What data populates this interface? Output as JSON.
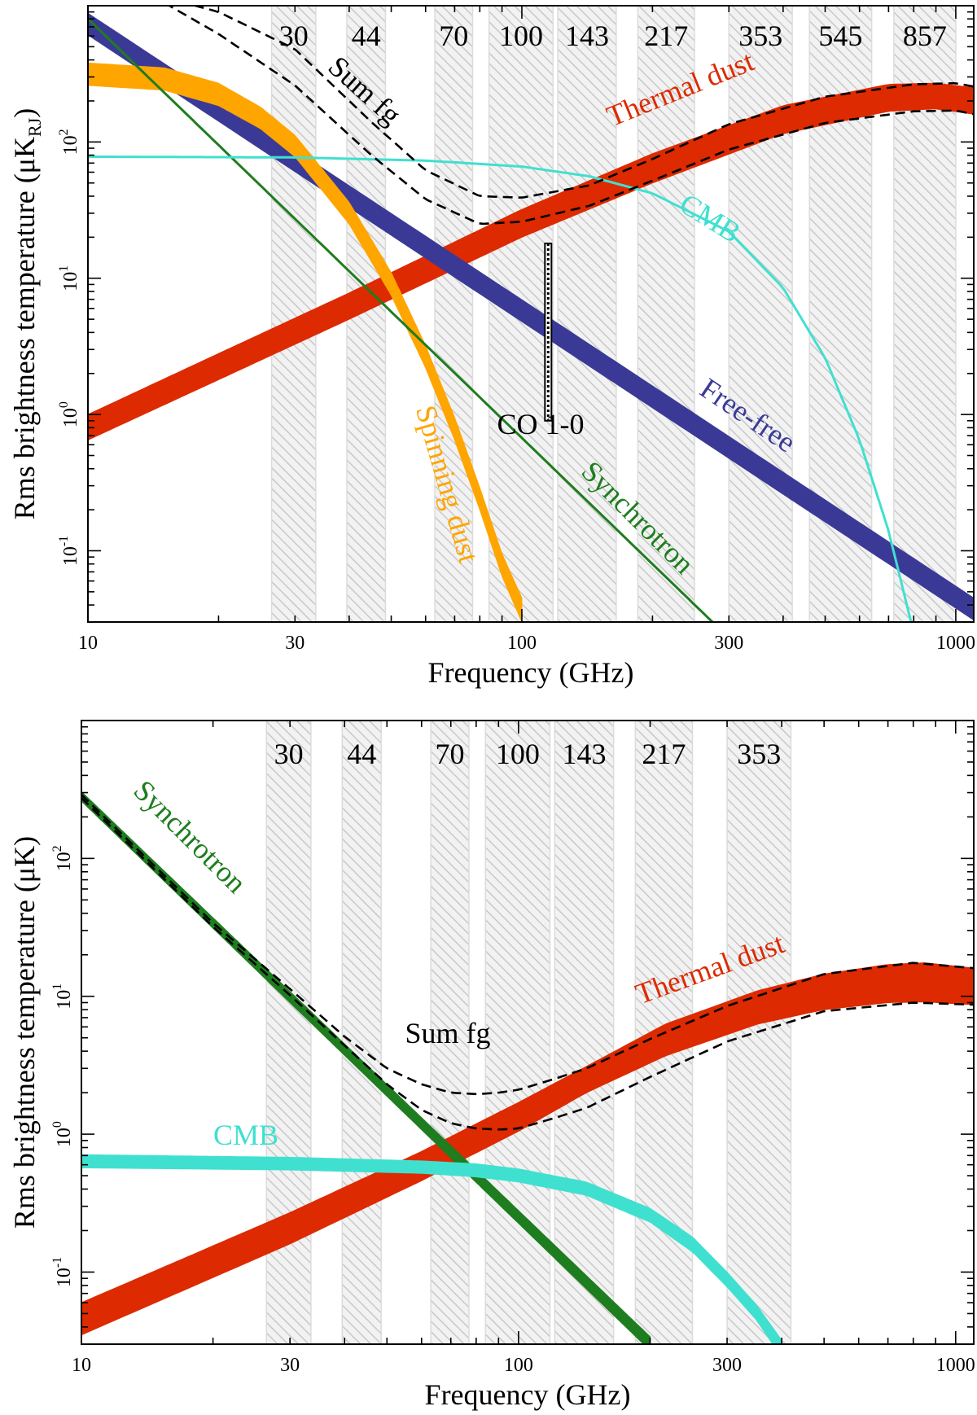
{
  "chart_data": [
    {
      "type": "line",
      "panel": "top",
      "xlabel": "Frequency (GHz)",
      "ylabel": "Rms brightness temperature (μK",
      "ylabel_sub": "RJ",
      "ylabel_close": ")",
      "xscale": "log",
      "yscale": "log",
      "xlim": [
        10,
        1100
      ],
      "ylim": [
        0.03,
        1000
      ],
      "x_ticks": [
        10,
        30,
        100,
        300,
        1000
      ],
      "x_tick_labels": [
        "10",
        "30",
        "100",
        "300",
        "1000"
      ],
      "y_ticks": [
        0.1,
        1,
        10,
        100
      ],
      "y_tick_labels": [
        [
          "10",
          "-1"
        ],
        [
          "10",
          "0"
        ],
        [
          "10",
          "1"
        ],
        [
          "10",
          "2"
        ]
      ],
      "bands": [
        {
          "label": "30",
          "range": [
            26.5,
            33.5
          ]
        },
        {
          "label": "44",
          "range": [
            39.5,
            48.5
          ]
        },
        {
          "label": "70",
          "range": [
            63,
            77
          ]
        },
        {
          "label": "100",
          "range": [
            84,
            118
          ]
        },
        {
          "label": "143",
          "range": [
            121,
            165
          ]
        },
        {
          "label": "217",
          "range": [
            185,
            250
          ]
        },
        {
          "label": "353",
          "range": [
            300,
            420
          ]
        },
        {
          "label": "545",
          "range": [
            460,
            640
          ]
        },
        {
          "label": "857",
          "range": [
            720,
            1000
          ]
        }
      ],
      "series": [
        {
          "name": "Thermal dust",
          "kind": "band",
          "color": "#dd2a00",
          "x": [
            10,
            20,
            40,
            100,
            200,
            400,
            700,
            900,
            1100
          ],
          "y_low": [
            0.65,
            1.8,
            5.0,
            20,
            50,
            115,
            168,
            175,
            160
          ],
          "y_high": [
            1.0,
            2.8,
            7.8,
            32,
            82,
            185,
            265,
            270,
            250
          ]
        },
        {
          "name": "Sum fg",
          "kind": "dashed-pair",
          "color": "#000000",
          "x": [
            15,
            20,
            30,
            45,
            60,
            80,
            100,
            143,
            200,
            300,
            500,
            800,
            1000,
            1100
          ],
          "y_low": [
            1050,
            620,
            260,
            80,
            38,
            25,
            26,
            34,
            52,
            88,
            138,
            168,
            170,
            160
          ],
          "y_high": [
            1150,
            900,
            480,
            140,
            62,
            40,
            39,
            48,
            75,
            135,
            215,
            265,
            270,
            255
          ]
        },
        {
          "name": "Free-free",
          "kind": "band",
          "color": "#3a3a96",
          "x": [
            10,
            1100
          ],
          "y_low": [
            610,
            0.031
          ],
          "y_high": [
            880,
            0.045
          ]
        },
        {
          "name": "Spinning dust",
          "kind": "band",
          "color": "#ffa500",
          "x": [
            10,
            15,
            20,
            25,
            30,
            40,
            50,
            60,
            70,
            80,
            90,
            100
          ],
          "y_low": [
            260,
            240,
            185,
            125,
            78,
            25,
            7.5,
            2.2,
            0.65,
            0.2,
            0.065,
            0.03
          ],
          "y_high": [
            380,
            350,
            270,
            180,
            112,
            36,
            11,
            3.2,
            0.95,
            0.29,
            0.095,
            0.045
          ]
        },
        {
          "name": "Synchrotron",
          "kind": "line",
          "color": "#1e7d1e",
          "x": [
            10,
            275
          ],
          "y": [
            800,
            0.03
          ]
        },
        {
          "name": "CMB",
          "kind": "line",
          "color": "#40e0d0",
          "x": [
            10,
            30,
            60,
            100,
            143,
            200,
            300,
            400,
            500,
            600,
            700,
            800
          ],
          "y": [
            78,
            77,
            73,
            66,
            56,
            42,
            22,
            8.5,
            2.6,
            0.65,
            0.14,
            0.025
          ]
        },
        {
          "name": "CO 1-0",
          "kind": "vbar",
          "color": "#000000",
          "x": 115,
          "y_range": [
            0.9,
            18
          ]
        }
      ],
      "labels": [
        {
          "text": "Sum fg",
          "color": "#000000"
        },
        {
          "text": "Thermal dust",
          "color": "#dd2a00"
        },
        {
          "text": "CMB",
          "color": "#40e0d0"
        },
        {
          "text": "Free-free",
          "color": "#3a3a96"
        },
        {
          "text": "Spinning dust",
          "color": "#ffa500"
        },
        {
          "text": "Synchrotron",
          "color": "#1e7d1e"
        },
        {
          "text": "CO 1-0",
          "color": "#000000"
        }
      ]
    },
    {
      "type": "line",
      "panel": "bottom",
      "xlabel": "Frequency (GHz)",
      "ylabel": "Rms brightness temperature (μK)",
      "ylabel_sub": "",
      "ylabel_close": "",
      "xscale": "log",
      "yscale": "log",
      "xlim": [
        10,
        1100
      ],
      "ylim": [
        0.03,
        1000
      ],
      "x_ticks": [
        10,
        30,
        100,
        300,
        1000
      ],
      "x_tick_labels": [
        "10",
        "30",
        "100",
        "300",
        "1000"
      ],
      "y_ticks": [
        0.1,
        1,
        10,
        100
      ],
      "y_tick_labels": [
        [
          "10",
          "-1"
        ],
        [
          "10",
          "0"
        ],
        [
          "10",
          "1"
        ],
        [
          "10",
          "2"
        ]
      ],
      "bands": [
        {
          "label": "30",
          "range": [
            26.5,
            33.5
          ]
        },
        {
          "label": "44",
          "range": [
            39.5,
            48.5
          ]
        },
        {
          "label": "70",
          "range": [
            63,
            77
          ]
        },
        {
          "label": "100",
          "range": [
            84,
            118
          ]
        },
        {
          "label": "143",
          "range": [
            121,
            165
          ]
        },
        {
          "label": "217",
          "range": [
            185,
            250
          ]
        },
        {
          "label": "353",
          "range": [
            300,
            420
          ]
        }
      ],
      "series": [
        {
          "name": "Thermal dust",
          "kind": "band",
          "color": "#dd2a00",
          "x": [
            10,
            30,
            60,
            100,
            143,
            217,
            353,
            500,
            700,
            850,
            1100
          ],
          "y_low": [
            0.035,
            0.16,
            0.46,
            1.05,
            2.0,
            3.7,
            6.3,
            8.0,
            9.0,
            9.1,
            8.7
          ],
          "y_high": [
            0.06,
            0.27,
            0.75,
            1.7,
            3.1,
            6.3,
            11.0,
            14.5,
            17.0,
            17.5,
            16.0
          ]
        },
        {
          "name": "Sum fg",
          "kind": "dashed-pair",
          "color": "#000000",
          "x": [
            10,
            20,
            30,
            40,
            50,
            60,
            70,
            80,
            90,
            100,
            120,
            143,
            200,
            300,
            500,
            800,
            1100
          ],
          "y_low": [
            275,
            32,
            10.2,
            4.4,
            2.3,
            1.5,
            1.2,
            1.1,
            1.08,
            1.1,
            1.3,
            1.55,
            2.6,
            4.7,
            7.8,
            9.0,
            8.7
          ],
          "y_high": [
            290,
            34,
            11.3,
            5.1,
            3.0,
            2.3,
            2.0,
            1.95,
            2.0,
            2.1,
            2.5,
            3.0,
            4.9,
            8.5,
            14.5,
            17.5,
            16.0
          ]
        },
        {
          "name": "Synchrotron",
          "kind": "band",
          "color": "#1e7d1e",
          "x": [
            10,
            200
          ],
          "y_low": [
            260,
            0.027
          ],
          "y_high": [
            305,
            0.034
          ]
        },
        {
          "name": "CMB",
          "kind": "band",
          "color": "#40e0d0",
          "x": [
            10,
            30,
            60,
            80,
            100,
            143,
            200,
            250,
            300,
            350,
            400
          ],
          "y_low": [
            0.57,
            0.55,
            0.52,
            0.49,
            0.45,
            0.36,
            0.23,
            0.14,
            0.078,
            0.045,
            0.024
          ],
          "y_high": [
            0.71,
            0.68,
            0.64,
            0.61,
            0.56,
            0.45,
            0.29,
            0.18,
            0.1,
            0.058,
            0.032
          ]
        }
      ],
      "labels": [
        {
          "text": "Synchrotron",
          "color": "#1e7d1e"
        },
        {
          "text": "Thermal dust",
          "color": "#dd2a00"
        },
        {
          "text": "Sum fg",
          "color": "#000000"
        },
        {
          "text": "CMB",
          "color": "#40e0d0"
        }
      ]
    }
  ]
}
